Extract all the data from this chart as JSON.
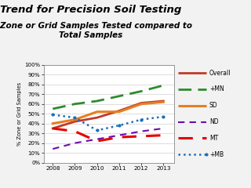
{
  "title1": "Trend for Precision Soil Testing",
  "title2": "% Zone or Grid Samples Tested compared to\nTotal Samples",
  "ylabel": "% Zone or Grid Samples",
  "years": [
    2008,
    2009,
    2010,
    2011,
    2012,
    2013
  ],
  "series": [
    {
      "name": "Overall",
      "values": [
        35,
        42,
        46,
        53,
        61,
        63
      ],
      "color": "#c0392b",
      "linestyle": "-",
      "linewidth": 2.0,
      "dashes": null,
      "marker": null
    },
    {
      "name": "+MN",
      "values": [
        55,
        60,
        63,
        68,
        73,
        79
      ],
      "color": "#2e8b2e",
      "linestyle": "--",
      "linewidth": 2.0,
      "dashes": [
        6,
        3
      ],
      "marker": null
    },
    {
      "name": "SD",
      "values": [
        40,
        44,
        52,
        52,
        60,
        62
      ],
      "color": "#e67e22",
      "linestyle": "-",
      "linewidth": 2.2,
      "dashes": null,
      "marker": null
    },
    {
      "name": "ND",
      "values": [
        14,
        20,
        24,
        28,
        32,
        35
      ],
      "color": "#6a0dad",
      "linestyle": "--",
      "linewidth": 1.5,
      "dashes": [
        4,
        3
      ],
      "marker": null
    },
    {
      "name": "MT",
      "values": [
        35,
        32,
        22,
        26,
        27,
        28
      ],
      "color": "#e60000",
      "linestyle": "--",
      "linewidth": 2.2,
      "dashes": [
        6,
        4
      ],
      "marker": null
    },
    {
      "name": "+MB",
      "values": [
        49,
        46,
        33,
        38,
        44,
        47
      ],
      "color": "#1a6ebd",
      "linestyle": ":",
      "linewidth": 1.8,
      "dashes": null,
      "marker": "."
    }
  ],
  "ytick_labels": [
    "0%",
    "10%",
    "20%",
    "30%",
    "40%",
    "50%",
    "60%",
    "70%",
    "80%",
    "90%",
    "100%"
  ],
  "ytick_vals": [
    0.0,
    0.1,
    0.2,
    0.3,
    0.4,
    0.5,
    0.6,
    0.7,
    0.8,
    0.9,
    1.0
  ],
  "bg_color": "#f2f2f2",
  "plot_bg": "#ffffff"
}
